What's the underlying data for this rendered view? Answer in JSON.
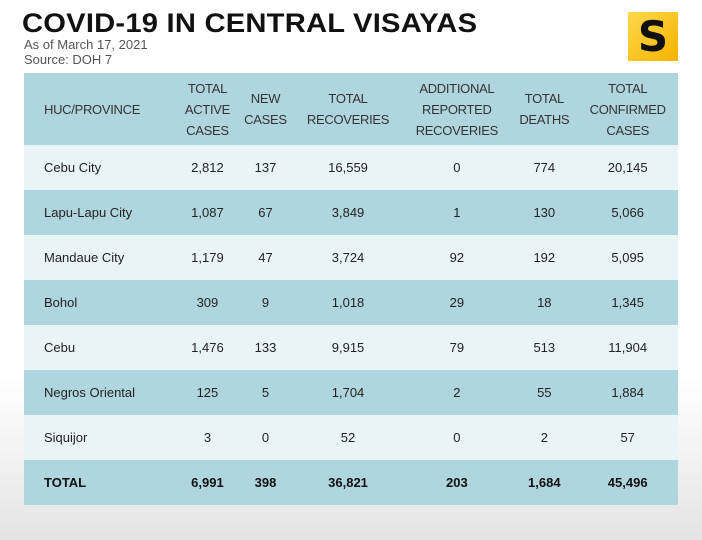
{
  "title": "COVID-19 IN CENTRAL VISAYAS",
  "as_of": "As of March 17, 2021",
  "source": "Source: DOH 7",
  "logo": "S",
  "headers": [
    [
      "HUC/PROVINCE"
    ],
    [
      "TOTAL",
      "ACTIVE",
      "CASES"
    ],
    [
      "NEW",
      "CASES"
    ],
    [
      "TOTAL",
      "RECOVERIES"
    ],
    [
      "ADDITIONAL",
      "REPORTED",
      "RECOVERIES"
    ],
    [
      "TOTAL",
      "DEATHS"
    ],
    [
      "TOTAL",
      "CONFIRMED",
      "CASES"
    ]
  ],
  "rows": [
    [
      "Cebu City",
      "2,812",
      "137",
      "16,559",
      "0",
      "774",
      "20,145"
    ],
    [
      "Lapu-Lapu City",
      "1,087",
      "67",
      "3,849",
      "1",
      "130",
      "5,066"
    ],
    [
      "Mandaue City",
      "1,179",
      "47",
      "3,724",
      "92",
      "192",
      "5,095"
    ],
    [
      "Bohol",
      "309",
      "9",
      "1,018",
      "29",
      "18",
      "1,345"
    ],
    [
      "Cebu",
      "1,476",
      "133",
      "9,915",
      "79",
      "513",
      "11,904"
    ],
    [
      "Negros Oriental",
      "125",
      "5",
      "1,704",
      "2",
      "55",
      "1,884"
    ],
    [
      "Siquijor",
      "3",
      "0",
      "52",
      "0",
      "2",
      "57"
    ],
    [
      "TOTAL",
      "6,991",
      "398",
      "36,821",
      "203",
      "1,684",
      "45,496"
    ]
  ]
}
